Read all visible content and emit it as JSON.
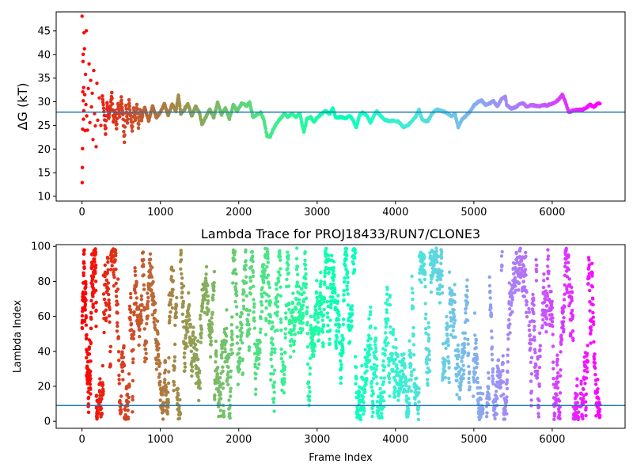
{
  "figure": {
    "background": "#ffffff",
    "marker_colormap": "rainbow (reversed: red at frame 0 to violet at final frame)"
  },
  "chart_data": [
    {
      "type": "scatter",
      "title": "",
      "xlabel": "",
      "ylabel": "ΔG (kT)",
      "xlim": [
        -330,
        6930
      ],
      "ylim": [
        9,
        49
      ],
      "xticks": [
        0,
        1000,
        2000,
        3000,
        4000,
        5000,
        6000
      ],
      "yticks": [
        10,
        15,
        20,
        25,
        30,
        35,
        40,
        45
      ],
      "grid": false,
      "legend": "none",
      "hline": {
        "y": 27.8,
        "color": "#1f77b4"
      },
      "series": [
        {
          "trace": [
            [
              0,
              48.1
            ],
            [
              2,
              12.9
            ],
            [
              4,
              16.1
            ],
            [
              6,
              20.1
            ],
            [
              8,
              24.2
            ],
            [
              10,
              32.1
            ],
            [
              12,
              38.5
            ],
            [
              14,
              40.0
            ],
            [
              16,
              30.2
            ],
            [
              18,
              26.3
            ],
            [
              20,
              33.0
            ],
            [
              22,
              28.1
            ],
            [
              25,
              44.6
            ],
            [
              30,
              41.2
            ],
            [
              35,
              31.5
            ],
            [
              40,
              23.9
            ],
            [
              45,
              35.8
            ],
            [
              50,
              29.4
            ],
            [
              55,
              45.0
            ],
            [
              60,
              27.0
            ],
            [
              70,
              24.0
            ],
            [
              80,
              32.8
            ],
            [
              90,
              38.0
            ],
            [
              100,
              25.6
            ],
            [
              110,
              34.5
            ],
            [
              120,
              28.9
            ],
            [
              130,
              31.8
            ],
            [
              140,
              22.0
            ],
            [
              150,
              36.6
            ],
            [
              160,
              27.5
            ],
            [
              170,
              24.9
            ],
            [
              180,
              20.5
            ],
            [
              190,
              33.9
            ],
            [
              200,
              26.1
            ],
            [
              220,
              30.8
            ],
            [
              240,
              25.0
            ],
            [
              260,
              31.2
            ],
            [
              280,
              27.9
            ],
            [
              300,
              23.2
            ],
            [
              320,
              29.8
            ],
            [
              340,
              26.5
            ],
            [
              360,
              28.6
            ],
            [
              380,
              31.9
            ],
            [
              400,
              25.7
            ],
            [
              420,
              28.1
            ],
            [
              440,
              24.3
            ],
            [
              460,
              29.6
            ],
            [
              480,
              26.8
            ],
            [
              500,
              31.0
            ],
            [
              520,
              27.4
            ],
            [
              540,
              21.4
            ],
            [
              560,
              29.2
            ],
            [
              580,
              25.5
            ],
            [
              600,
              30.4
            ],
            [
              620,
              27.0
            ],
            [
              640,
              23.8
            ],
            [
              660,
              28.7
            ],
            [
              680,
              26.1
            ],
            [
              700,
              29.4
            ],
            [
              720,
              24.5
            ],
            [
              740,
              28.2
            ],
            [
              760,
              26.0
            ],
            [
              780,
              27.9
            ],
            [
              800,
              28.8
            ],
            [
              850,
              25.9
            ],
            [
              900,
              29.1
            ],
            [
              950,
              26.6
            ],
            [
              1000,
              27.8
            ],
            [
              1050,
              29.6
            ],
            [
              1100,
              27.2
            ],
            [
              1150,
              29.5
            ],
            [
              1200,
              28.0
            ],
            [
              1230,
              31.4
            ],
            [
              1260,
              27.4
            ],
            [
              1300,
              28.2
            ],
            [
              1350,
              29.6
            ],
            [
              1400,
              27.0
            ],
            [
              1450,
              29.0
            ],
            [
              1500,
              27.6
            ],
            [
              1530,
              25.2
            ],
            [
              1580,
              26.8
            ],
            [
              1630,
              28.4
            ],
            [
              1680,
              26.6
            ],
            [
              1730,
              29.9
            ],
            [
              1780,
              27.3
            ],
            [
              1830,
              28.7
            ],
            [
              1880,
              26.4
            ],
            [
              1930,
              29.4
            ],
            [
              1980,
              28.0
            ],
            [
              2040,
              29.7
            ],
            [
              2100,
              29.1
            ],
            [
              2140,
              29.9
            ],
            [
              2180,
              26.8
            ],
            [
              2230,
              27.2
            ],
            [
              2280,
              27.7
            ],
            [
              2320,
              26.2
            ],
            [
              2360,
              22.8
            ],
            [
              2400,
              22.6
            ],
            [
              2430,
              23.8
            ],
            [
              2480,
              25.4
            ],
            [
              2530,
              26.4
            ],
            [
              2580,
              27.4
            ],
            [
              2630,
              26.8
            ],
            [
              2680,
              27.5
            ],
            [
              2730,
              26.8
            ],
            [
              2780,
              27.5
            ],
            [
              2830,
              23.6
            ],
            [
              2870,
              26.4
            ],
            [
              2920,
              26.8
            ],
            [
              2960,
              25.7
            ],
            [
              3000,
              26.6
            ],
            [
              3060,
              27.5
            ],
            [
              3110,
              28.0
            ],
            [
              3160,
              27.4
            ],
            [
              3200,
              28.6
            ],
            [
              3240,
              26.6
            ],
            [
              3300,
              26.8
            ],
            [
              3360,
              26.5
            ],
            [
              3420,
              27.0
            ],
            [
              3460,
              26.1
            ],
            [
              3500,
              24.6
            ],
            [
              3540,
              27.1
            ],
            [
              3580,
              27.7
            ],
            [
              3640,
              27.0
            ],
            [
              3680,
              25.5
            ],
            [
              3720,
              26.9
            ],
            [
              3760,
              28.0
            ],
            [
              3800,
              27.2
            ],
            [
              3860,
              26.2
            ],
            [
              3920,
              25.9
            ],
            [
              3980,
              26.0
            ],
            [
              4040,
              25.8
            ],
            [
              4100,
              24.6
            ],
            [
              4150,
              24.9
            ],
            [
              4200,
              25.7
            ],
            [
              4260,
              26.9
            ],
            [
              4300,
              28.3
            ],
            [
              4340,
              26.3
            ],
            [
              4380,
              25.9
            ],
            [
              4420,
              26.0
            ],
            [
              4460,
              27.4
            ],
            [
              4500,
              28.0
            ],
            [
              4540,
              28.4
            ],
            [
              4600,
              28.0
            ],
            [
              4660,
              27.6
            ],
            [
              4720,
              26.9
            ],
            [
              4760,
              27.5
            ],
            [
              4800,
              24.6
            ],
            [
              4850,
              26.3
            ],
            [
              4900,
              27.0
            ],
            [
              4950,
              27.9
            ],
            [
              5000,
              29.2
            ],
            [
              5050,
              29.9
            ],
            [
              5100,
              30.3
            ],
            [
              5150,
              29.3
            ],
            [
              5200,
              29.6
            ],
            [
              5250,
              30.2
            ],
            [
              5300,
              29.0
            ],
            [
              5350,
              30.5
            ],
            [
              5400,
              31.1
            ],
            [
              5420,
              29.3
            ],
            [
              5480,
              28.6
            ],
            [
              5530,
              28.8
            ],
            [
              5580,
              29.4
            ],
            [
              5630,
              29.7
            ],
            [
              5680,
              28.9
            ],
            [
              5730,
              29.3
            ],
            [
              5780,
              29.2
            ],
            [
              5830,
              29.0
            ],
            [
              5880,
              29.3
            ],
            [
              5930,
              29.2
            ],
            [
              5980,
              29.5
            ],
            [
              6030,
              29.8
            ],
            [
              6080,
              30.4
            ],
            [
              6130,
              31.5
            ],
            [
              6170,
              29.9
            ],
            [
              6210,
              27.8
            ],
            [
              6260,
              28.1
            ],
            [
              6320,
              28.3
            ],
            [
              6380,
              28.3
            ],
            [
              6430,
              28.6
            ],
            [
              6480,
              29.4
            ],
            [
              6530,
              28.9
            ],
            [
              6580,
              29.6
            ],
            [
              6610,
              29.6
            ]
          ]
        }
      ]
    },
    {
      "type": "scatter",
      "title": "Lambda Trace for PROJ18433/RUN7/CLONE3",
      "xlabel": "Frame Index",
      "ylabel": "Lambda Index",
      "xlim": [
        -330,
        6930
      ],
      "ylim": [
        -4,
        101
      ],
      "xticks": [
        0,
        1000,
        2000,
        3000,
        4000,
        5000,
        6000
      ],
      "yticks": [
        0,
        20,
        40,
        60,
        80,
        100
      ],
      "grid": false,
      "legend": "none",
      "hline": {
        "y": 9,
        "color": "#1f77b4"
      },
      "frame_count": 6610,
      "lambda_range": [
        1,
        99
      ],
      "series": [
        {
          "sparse_gap_frames": [
            [
              4950,
              4990
            ],
            [
              5120,
              5160
            ],
            [
              5680,
              5700
            ],
            [
              5850,
              5870
            ],
            [
              6340,
              6360
            ]
          ],
          "low_lambda_dense_bands": [
            [
              4950,
              5100,
              45
            ],
            [
              3900,
              4300,
              40
            ]
          ]
        }
      ]
    }
  ]
}
